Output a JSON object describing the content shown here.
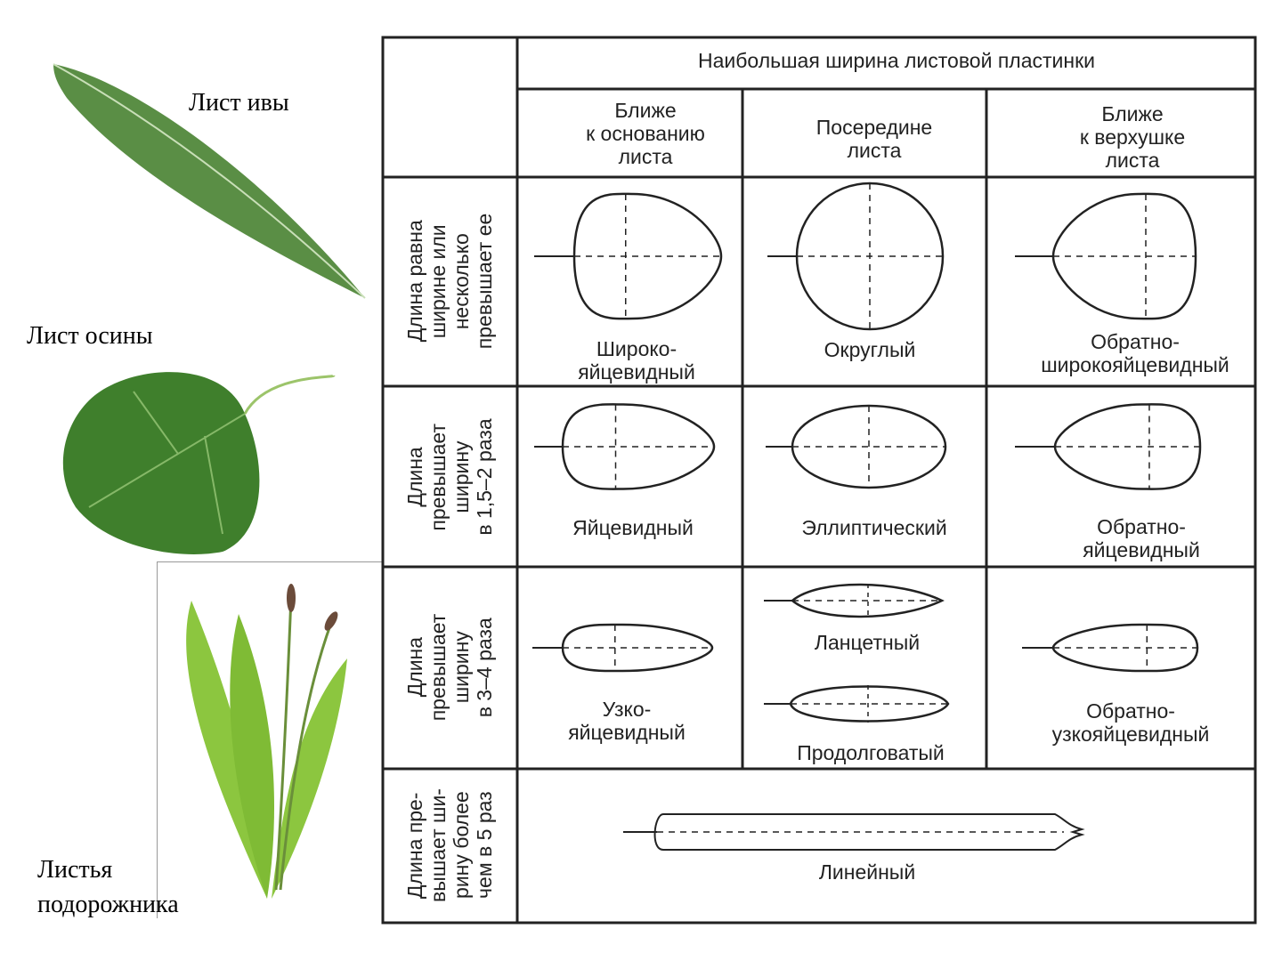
{
  "photos": {
    "willow_label": "Лист ивы",
    "aspen_label": "Лист осины",
    "plantain_label_1": "Листья",
    "plantain_label_2": "подорожника"
  },
  "table": {
    "header": "Наибольшая ширина листовой пластинки",
    "columns": [
      [
        "Ближе",
        "к основанию",
        "листа"
      ],
      [
        "Посередине",
        "листа"
      ],
      [
        "Ближе",
        "к верхушке",
        "листа"
      ]
    ],
    "rows": [
      {
        "label": [
          "Длина равна",
          "ширине или",
          "несколько",
          "превышает ее"
        ],
        "cells": [
          [
            "Широко-",
            "яйцевидный"
          ],
          [
            "Округлый"
          ],
          [
            "Обратно-",
            "широкояйцевидный"
          ]
        ]
      },
      {
        "label": [
          "Длина",
          "превышает",
          "ширину",
          "в 1,5–2 раза"
        ],
        "cells": [
          [
            "Яйцевидный"
          ],
          [
            "Эллиптический"
          ],
          [
            "Обратно-",
            "яйцевидный"
          ]
        ]
      },
      {
        "label": [
          "Длина",
          "превышает",
          "ширину",
          "в 3–4 раза"
        ],
        "cells": [
          [
            "Узко-",
            "яйцевидный"
          ],
          [
            "Ланцетный"
          ],
          [
            "Обратно-",
            "узкояйцевидный"
          ]
        ],
        "extra": "Продолговатый"
      },
      {
        "label": [
          "Длина пре-",
          "вышает ши-",
          "рину более",
          "чем в 5 раз"
        ],
        "cells": [
          [
            "Линейный"
          ]
        ]
      }
    ]
  },
  "colors": {
    "line": "#222222",
    "leaf": "#4f8a3a",
    "leaf_light": "#8cc63f"
  }
}
